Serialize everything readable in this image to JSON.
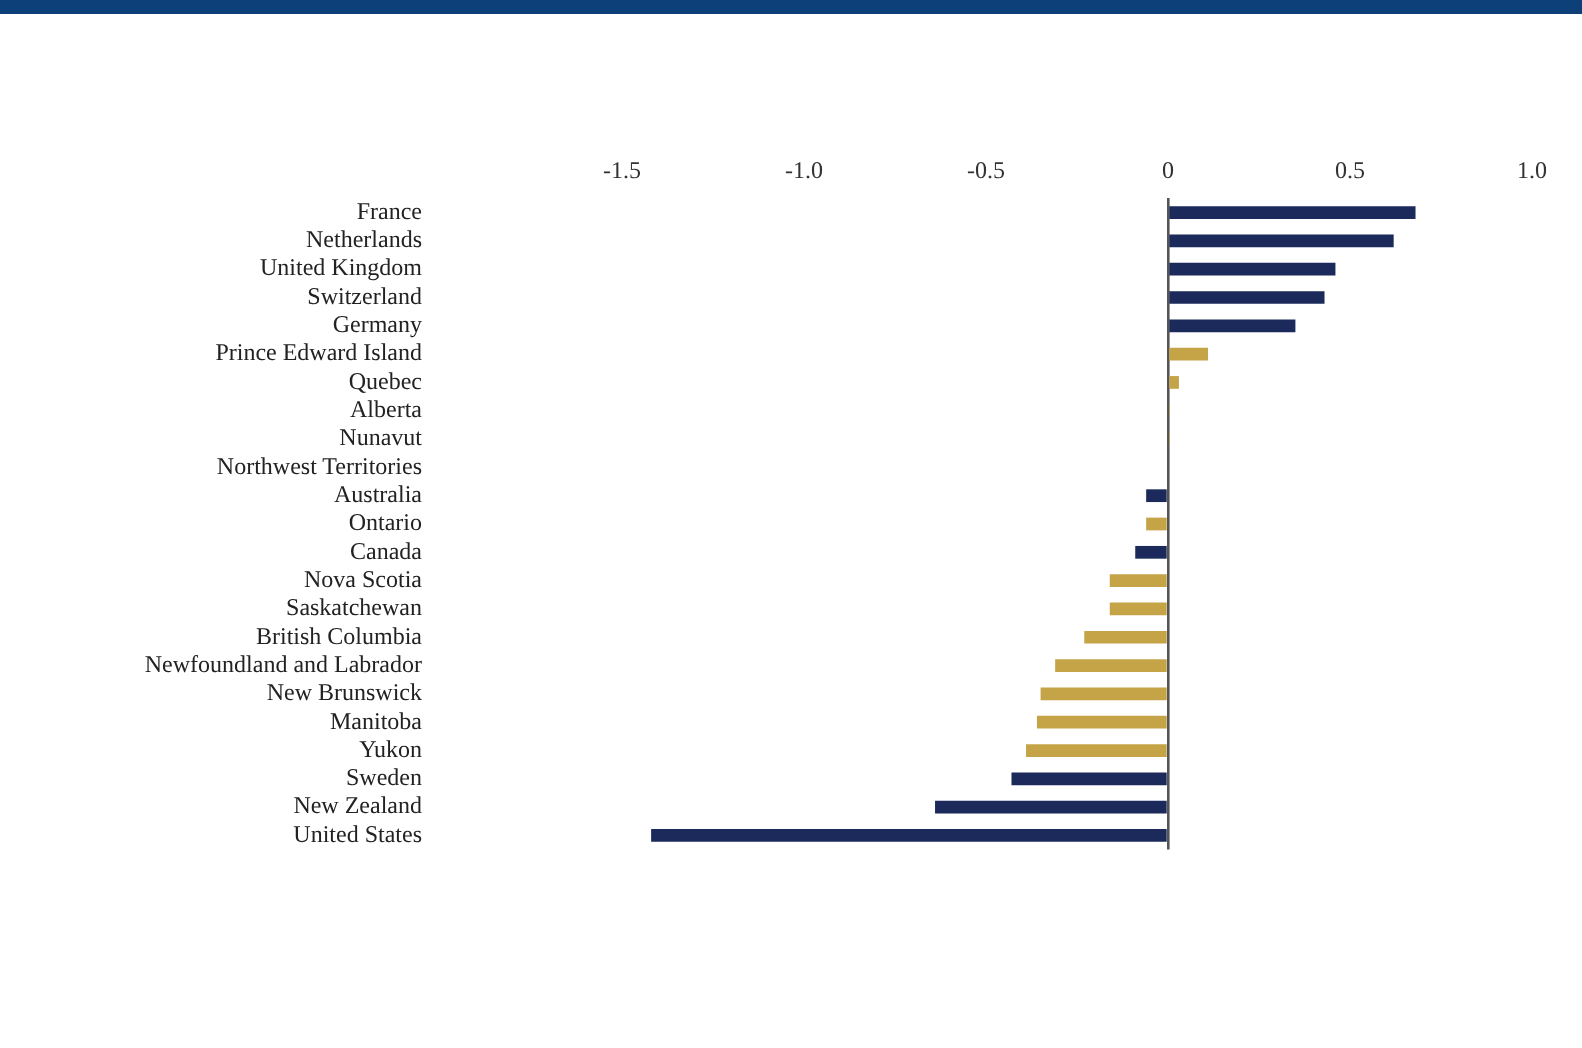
{
  "chart_data": {
    "type": "bar",
    "orientation": "horizontal",
    "categories": [
      "France",
      "Netherlands",
      "United Kingdom",
      "Switzerland",
      "Germany",
      "Prince Edward Island",
      "Quebec",
      "Alberta",
      "Nunavut",
      "Northwest Territories",
      "Australia",
      "Ontario",
      "Canada",
      "Nova Scotia",
      "Saskatchewan",
      "British Columbia",
      "Newfoundland and Labrador",
      "New Brunswick",
      "Manitoba",
      "Yukon",
      "Sweden",
      "New Zealand",
      "United States"
    ],
    "values": [
      0.68,
      0.62,
      0.46,
      0.43,
      0.35,
      0.11,
      0.03,
      0.005,
      0.005,
      0,
      -0.06,
      -0.06,
      -0.09,
      -0.16,
      -0.16,
      -0.23,
      -0.31,
      -0.35,
      -0.36,
      -0.39,
      -0.43,
      -0.64,
      -1.42
    ],
    "colors": [
      "#1b2a5a",
      "#1b2a5a",
      "#1b2a5a",
      "#1b2a5a",
      "#1b2a5a",
      "#c4a447",
      "#c4a447",
      "#c4a447",
      "#c4a447",
      "#c4a447",
      "#1b2a5a",
      "#c4a447",
      "#1b2a5a",
      "#c4a447",
      "#c4a447",
      "#c4a447",
      "#c4a447",
      "#c4a447",
      "#c4a447",
      "#c4a447",
      "#1b2a5a",
      "#1b2a5a",
      "#1b2a5a"
    ],
    "xlim": [
      -1.5,
      1.0
    ],
    "xticks": [
      {
        "value": -1.5,
        "label": "-1.5"
      },
      {
        "value": -1.0,
        "label": "-1.0"
      },
      {
        "value": -0.5,
        "label": "-0.5"
      },
      0,
      {
        "value": 0.5,
        "label": "0.5"
      },
      {
        "value": 1.0,
        "label": "1.0"
      }
    ]
  }
}
